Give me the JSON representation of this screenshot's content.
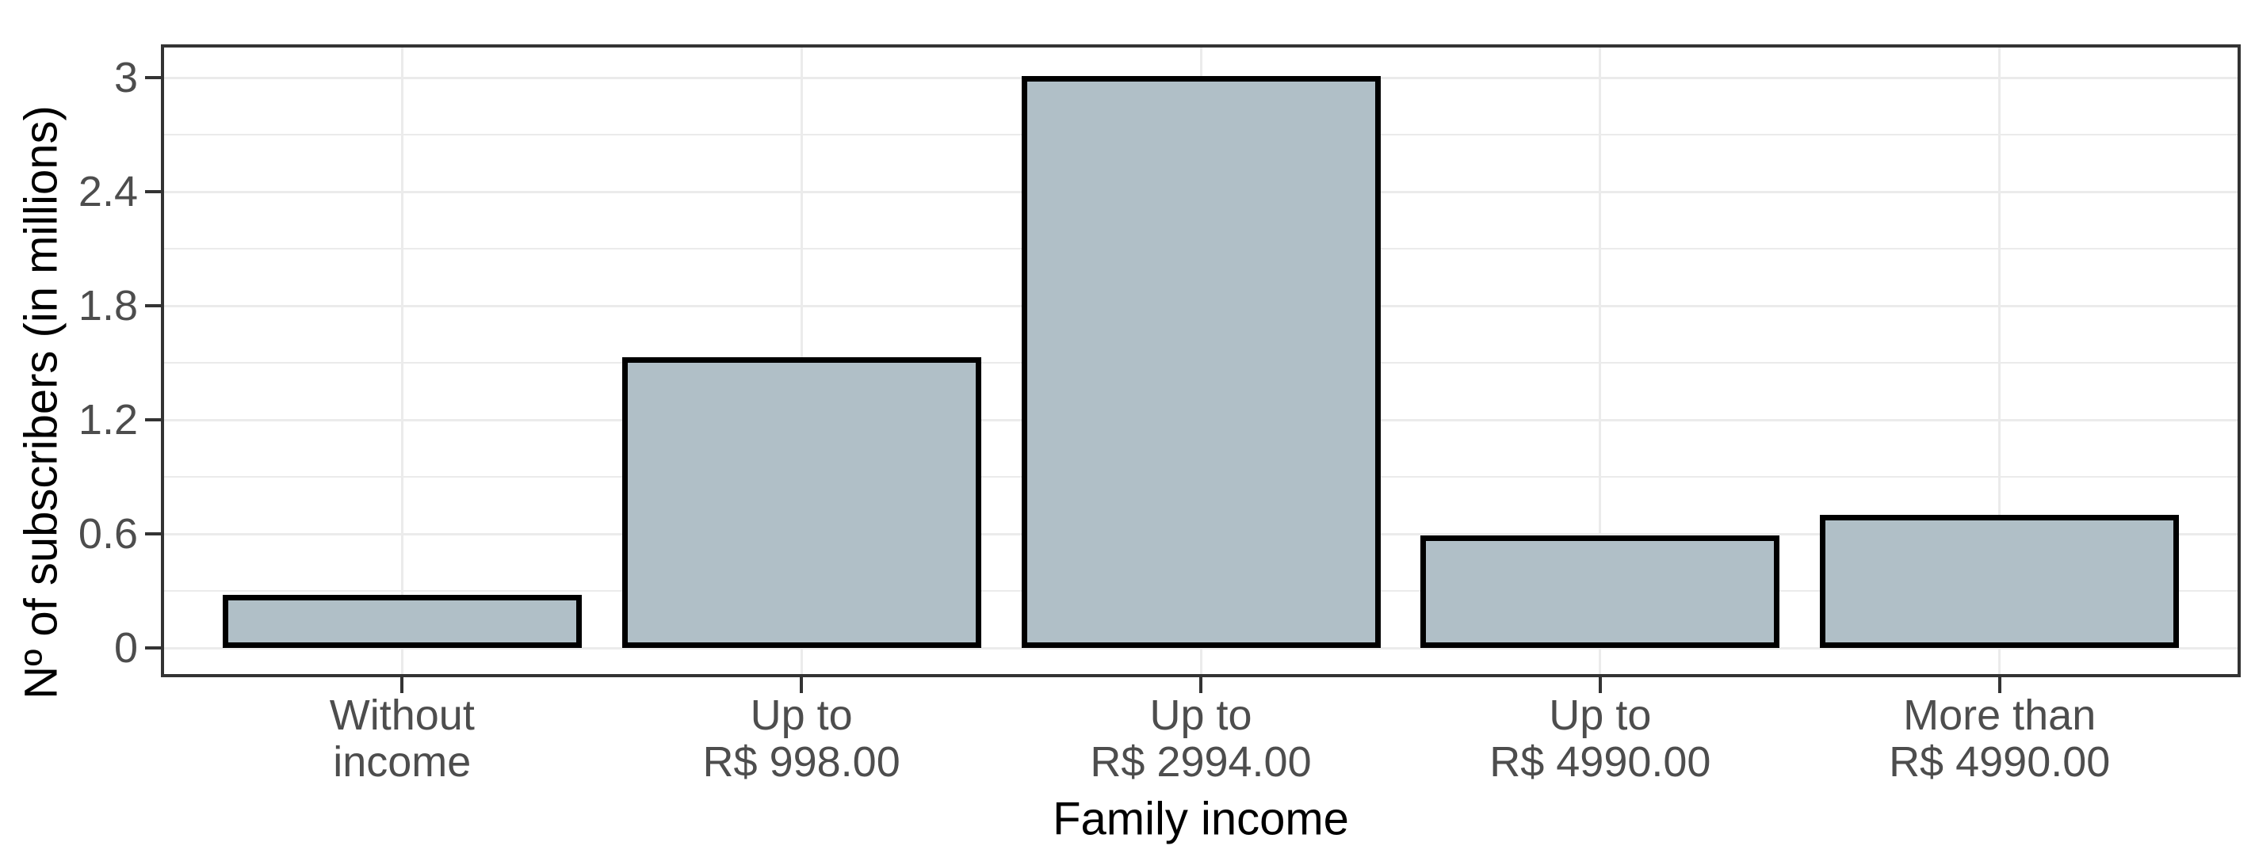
{
  "chart_data": {
    "type": "bar",
    "title": "",
    "xlabel": "Family income",
    "ylabel": "Nº of subscribers (in millions)",
    "categories": [
      "Without\nincome",
      "Up to\nR$ 998.00",
      "Up to\nR$ 2994.00",
      "Up to\nR$ 4990.00",
      "More than\nR$ 4990.00"
    ],
    "values": [
      0.28,
      1.53,
      3.01,
      0.59,
      0.7
    ],
    "ylim": [
      0,
      3.17
    ],
    "y_major_ticks": {
      "values": [
        0,
        0.6,
        1.2,
        1.8,
        2.4,
        3
      ],
      "labels": [
        "0",
        "0.6",
        "1.2",
        "1.8",
        "2.4",
        "3"
      ]
    },
    "y_minor_ticks": [
      0.3,
      0.9,
      1.5,
      2.1,
      2.7
    ],
    "grid": {
      "horizontal": "major+minor",
      "vertical": "major-at-category-centers"
    },
    "legend": "none",
    "bar_width_fraction": 0.9,
    "colors": {
      "background": "#ffffff",
      "bar_fill": "#b0bfc7",
      "bar_border": "#000000",
      "panel_border": "#333333",
      "gridline": "#ebebeb",
      "tick_mark": "#333333",
      "tick_label": "#4d4d4d",
      "axis_title": "#000000"
    }
  }
}
